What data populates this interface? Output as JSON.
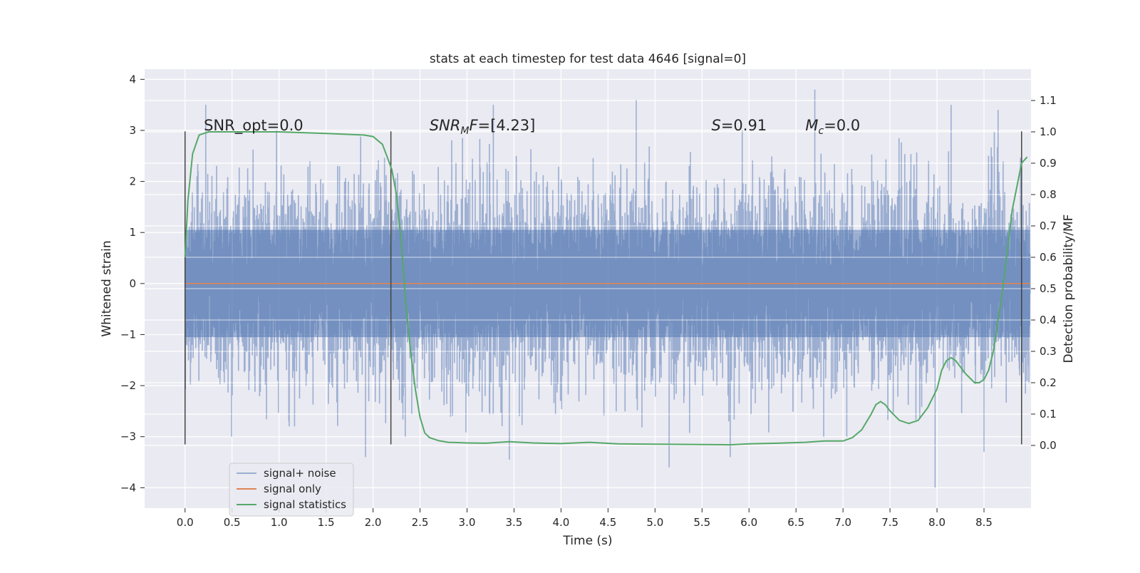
{
  "chart_data": {
    "type": "line",
    "title": "stats at each timestep for test data 4646 [signal=0]",
    "xlabel": "Time (s)",
    "ylabel_left": "Whitened strain",
    "ylabel_right": "Detection probability/MF",
    "xlim": [
      -0.43,
      9.0
    ],
    "ylim_left": [
      -4.4,
      4.2
    ],
    "ylim_right": [
      -0.2,
      1.2
    ],
    "x_ticks": [
      0.0,
      0.5,
      1.0,
      1.5,
      2.0,
      2.5,
      3.0,
      3.5,
      4.0,
      4.5,
      5.0,
      5.5,
      6.0,
      6.5,
      7.0,
      7.5,
      8.0,
      8.5
    ],
    "x_tick_labels": [
      "0.0",
      "0.5",
      "1.0",
      "1.5",
      "2.0",
      "2.5",
      "3.0",
      "3.5",
      "4.0",
      "4.5",
      "5.0",
      "5.5",
      "6.0",
      "6.5",
      "7.0",
      "7.5",
      "8.0",
      "8.5"
    ],
    "y_left_ticks": [
      -4,
      -3,
      -2,
      -1,
      0,
      1,
      2,
      3,
      4
    ],
    "y_left_tick_labels": [
      "−4",
      "−3",
      "−2",
      "−1",
      "0",
      "1",
      "2",
      "3",
      "4"
    ],
    "y_right_ticks": [
      0.0,
      0.1,
      0.2,
      0.3,
      0.4,
      0.5,
      0.6,
      0.7,
      0.8,
      0.9,
      1.0,
      1.1
    ],
    "y_right_tick_labels": [
      "0.0",
      "0.1",
      "0.2",
      "0.3",
      "0.4",
      "0.5",
      "0.6",
      "0.7",
      "0.8",
      "0.9",
      "1.0",
      "1.1"
    ],
    "grid": true,
    "legend_position": "lower-left",
    "annotations": [
      {
        "text": "SNR_opt=0.0",
        "x": 0.2,
        "y": 3.0
      },
      {
        "text": "SNRMF=[4.23]",
        "x": 2.6,
        "y": 3.0
      },
      {
        "text": "S=0.91",
        "x": 5.6,
        "y": 3.0
      },
      {
        "text": "Mc=0.0",
        "x": 6.6,
        "y": 3.0
      }
    ],
    "vlines": [
      {
        "x": 0.0,
        "ymin": -3.15,
        "ymax": 2.98
      },
      {
        "x": 2.19,
        "ymin": -3.15,
        "ymax": 2.98
      },
      {
        "x": 8.9,
        "ymin": -3.15,
        "ymax": 2.98
      }
    ],
    "series": [
      {
        "name": "signal+ noise",
        "axis": "left",
        "color": "#4c72b0",
        "alpha": 0.5,
        "x_range": [
          0.0,
          8.99
        ],
        "approx_envelope": [
          -2.8,
          2.8
        ],
        "peaks": [
          {
            "x": 0.22,
            "y": 3.5
          },
          {
            "x": 3.28,
            "y": 3.5
          },
          {
            "x": 4.8,
            "y": 3.6
          },
          {
            "x": 6.7,
            "y": 3.8
          },
          {
            "x": 8.15,
            "y": 3.5
          },
          {
            "x": 8.65,
            "y": 3.4
          },
          {
            "x": 1.92,
            "y": -3.4
          },
          {
            "x": 3.45,
            "y": -3.45
          },
          {
            "x": 5.15,
            "y": -3.6
          },
          {
            "x": 5.8,
            "y": -3.4
          },
          {
            "x": 7.98,
            "y": -4.0
          },
          {
            "x": 8.5,
            "y": -3.3
          }
        ]
      },
      {
        "name": "signal only",
        "axis": "left",
        "color": "#dd8452",
        "x": [
          0.0,
          8.99
        ],
        "y": [
          0.0,
          0.0
        ]
      },
      {
        "name": "signal statistics",
        "axis": "right",
        "color": "#55a868",
        "x": [
          0.0,
          0.03,
          0.08,
          0.15,
          0.25,
          0.5,
          1.0,
          1.5,
          1.9,
          2.0,
          2.1,
          2.15,
          2.2,
          2.25,
          2.3,
          2.35,
          2.4,
          2.45,
          2.5,
          2.55,
          2.6,
          2.7,
          2.8,
          3.0,
          3.2,
          3.45,
          3.7,
          4.0,
          4.3,
          4.6,
          5.0,
          5.5,
          5.8,
          6.0,
          6.3,
          6.6,
          6.8,
          7.0,
          7.1,
          7.2,
          7.3,
          7.35,
          7.4,
          7.45,
          7.5,
          7.6,
          7.7,
          7.8,
          7.9,
          8.0,
          8.05,
          8.1,
          8.15,
          8.2,
          8.3,
          8.4,
          8.45,
          8.5,
          8.55,
          8.6,
          8.7,
          8.8,
          8.9,
          8.96
        ],
        "y": [
          0.6,
          0.78,
          0.93,
          0.99,
          1.0,
          1.0,
          1.0,
          0.995,
          0.99,
          0.985,
          0.96,
          0.92,
          0.88,
          0.8,
          0.65,
          0.45,
          0.3,
          0.18,
          0.09,
          0.04,
          0.025,
          0.015,
          0.01,
          0.008,
          0.007,
          0.012,
          0.008,
          0.006,
          0.01,
          0.005,
          0.004,
          0.003,
          0.002,
          0.005,
          0.007,
          0.01,
          0.014,
          0.014,
          0.025,
          0.05,
          0.1,
          0.13,
          0.14,
          0.13,
          0.11,
          0.08,
          0.07,
          0.08,
          0.12,
          0.18,
          0.24,
          0.27,
          0.28,
          0.27,
          0.23,
          0.2,
          0.2,
          0.21,
          0.24,
          0.3,
          0.5,
          0.75,
          0.9,
          0.92
        ]
      }
    ]
  }
}
